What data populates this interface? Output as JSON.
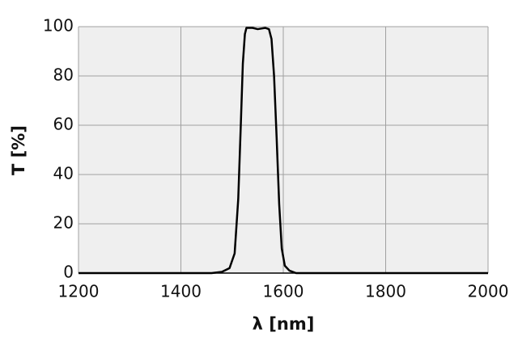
{
  "chart_data": {
    "type": "line",
    "x_label": "λ [nm]",
    "y_label": "T [%]",
    "xlim": [
      1200,
      2000
    ],
    "xticks": [
      1200,
      1400,
      1600,
      1800,
      2000
    ],
    "ylim": [
      0,
      100
    ],
    "yticks": [
      0,
      20,
      40,
      60,
      80,
      100
    ],
    "grid": true,
    "series": [
      {
        "color": "#000000",
        "x": [
          1200,
          1300,
          1400,
          1460,
          1480,
          1495,
          1505,
          1512,
          1517,
          1521,
          1525,
          1528,
          1540,
          1550,
          1565,
          1572,
          1577,
          1582,
          1587,
          1592,
          1597,
          1603,
          1612,
          1625,
          1700,
          1800,
          1900,
          2000
        ],
        "values": [
          0,
          0,
          0,
          0,
          0.5,
          2,
          8,
          30,
          60,
          85,
          97,
          99.5,
          99.5,
          99,
          99.5,
          99,
          95,
          80,
          55,
          28,
          10,
          3,
          1,
          0,
          0,
          0,
          0,
          0
        ]
      }
    ]
  }
}
